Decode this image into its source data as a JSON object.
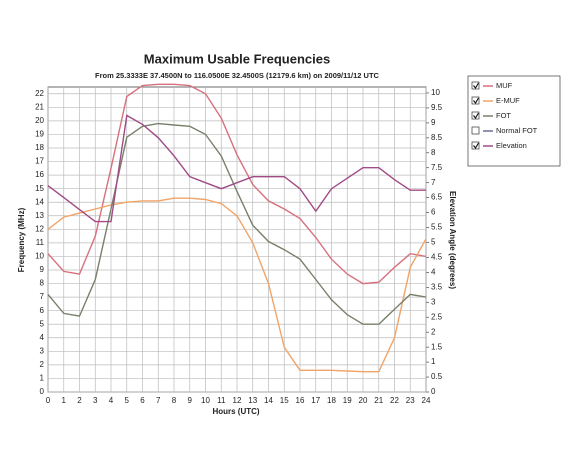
{
  "chart_data": {
    "type": "line",
    "title": "Maximum Usable Frequencies",
    "subtitle": "From  25.3333E 37.4500N to 116.0500E 32.4500S (12179.6 km) on 2009/11/12 UTC",
    "xlabel": "Hours (UTC)",
    "ylabel": "Frequency (MHz)",
    "y2label": "Elevation Angle (degrees)",
    "x": [
      0,
      1,
      2,
      3,
      4,
      5,
      6,
      7,
      8,
      9,
      10,
      11,
      12,
      13,
      14,
      15,
      16,
      17,
      18,
      19,
      20,
      21,
      22,
      23,
      24
    ],
    "xlim": [
      0,
      24
    ],
    "xticks": [
      0,
      1,
      2,
      3,
      4,
      5,
      6,
      7,
      8,
      9,
      10,
      11,
      12,
      13,
      14,
      15,
      16,
      17,
      18,
      19,
      20,
      21,
      22,
      23,
      24
    ],
    "ylim": [
      0,
      22.5
    ],
    "yticks": [
      0,
      1,
      2,
      3,
      4,
      5,
      6,
      7,
      8,
      9,
      10,
      11,
      12,
      13,
      14,
      15,
      16,
      17,
      18,
      19,
      20,
      21,
      22
    ],
    "y2lim": [
      0,
      10.2
    ],
    "y2ticks": [
      0,
      0.5,
      1,
      1.5,
      2,
      2.5,
      3,
      3.5,
      4,
      4.5,
      5,
      5.5,
      6,
      6.5,
      7,
      7.5,
      8,
      8.5,
      9,
      9.5,
      10
    ],
    "grid": true,
    "series": [
      {
        "name": "MUF",
        "color": "#d7707e",
        "checked": true,
        "values": [
          10.2,
          8.9,
          8.7,
          11.5,
          16.5,
          21.8,
          22.6,
          22.7,
          22.7,
          22.6,
          22.0,
          20.2,
          17.5,
          15.3,
          14.1,
          13.5,
          12.8,
          11.4,
          9.8,
          8.7,
          8.0,
          8.1,
          9.2,
          10.2,
          10.0
        ]
      },
      {
        "name": "E-MUF",
        "color": "#f0a468",
        "checked": true,
        "values": [
          12.0,
          12.9,
          13.2,
          13.5,
          13.8,
          14.0,
          14.1,
          14.1,
          14.3,
          14.3,
          14.2,
          13.9,
          13.0,
          11.0,
          8.0,
          3.3,
          1.6,
          1.6,
          1.6,
          1.55,
          1.5,
          1.5,
          4.0,
          9.2,
          11.3
        ]
      },
      {
        "name": "FOT",
        "color": "#77806a",
        "checked": true,
        "values": [
          7.2,
          5.8,
          5.6,
          8.3,
          13.5,
          18.8,
          19.6,
          19.8,
          19.7,
          19.6,
          19.0,
          17.4,
          14.8,
          12.3,
          11.1,
          10.5,
          9.8,
          8.3,
          6.8,
          5.7,
          5.0,
          5.0,
          6.1,
          7.2,
          7.0
        ]
      },
      {
        "name": "Normal FOT",
        "color": "#6d6d9a",
        "checked": false,
        "values": [
          null,
          null,
          null,
          null,
          null,
          null,
          null,
          null,
          null,
          null,
          null,
          null,
          null,
          null,
          null,
          null,
          null,
          null,
          null,
          null,
          null,
          null,
          null,
          null,
          null
        ]
      },
      {
        "name": "Elevation",
        "color": "#a04a86",
        "checked": true,
        "axis": "y2",
        "values": [
          6.9,
          6.5,
          6.1,
          5.7,
          5.7,
          9.25,
          8.95,
          8.5,
          7.9,
          7.2,
          7.0,
          6.8,
          7.0,
          7.2,
          7.2,
          7.2,
          6.8,
          6.05,
          6.8,
          7.15,
          7.5,
          7.5,
          7.1,
          6.75,
          6.75
        ]
      }
    ]
  }
}
